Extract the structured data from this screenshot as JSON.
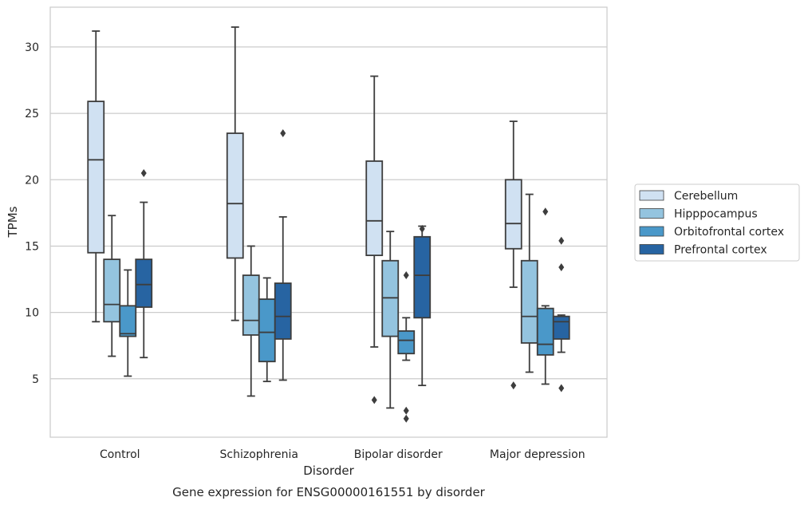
{
  "chart_data": {
    "type": "box",
    "title": "Gene expression for ENSG00000161551 by disorder",
    "xlabel": "Disorder",
    "ylabel": "TPMs",
    "ylim": [
      0.6,
      33.0
    ],
    "yticks": [
      5,
      10,
      15,
      20,
      25,
      30
    ],
    "grid": "horizontal",
    "legend_position": "right",
    "categories": [
      "Control",
      "Schizophrenia",
      "Bipolar disorder",
      "Major depression"
    ],
    "series": [
      {
        "name": "Cerebellum",
        "color": "#d0e1f2",
        "boxes": [
          {
            "whislo": 9.3,
            "q1": 14.5,
            "med": 21.5,
            "q3": 25.9,
            "whishi": 31.2,
            "fliers": []
          },
          {
            "whislo": 9.4,
            "q1": 14.1,
            "med": 18.2,
            "q3": 23.5,
            "whishi": 31.5,
            "fliers": []
          },
          {
            "whislo": 7.4,
            "q1": 14.3,
            "med": 16.9,
            "q3": 21.4,
            "whishi": 27.8,
            "fliers": [
              3.4
            ]
          },
          {
            "whislo": 11.9,
            "q1": 14.8,
            "med": 16.7,
            "q3": 20.0,
            "whishi": 24.4,
            "fliers": [
              4.5
            ]
          }
        ]
      },
      {
        "name": "Hipppocampus",
        "color": "#94c4df",
        "boxes": [
          {
            "whislo": 6.7,
            "q1": 9.3,
            "med": 10.6,
            "q3": 14.0,
            "whishi": 17.3,
            "fliers": []
          },
          {
            "whislo": 3.7,
            "q1": 8.3,
            "med": 9.4,
            "q3": 12.8,
            "whishi": 15.0,
            "fliers": []
          },
          {
            "whislo": 2.8,
            "q1": 8.2,
            "med": 11.1,
            "q3": 13.9,
            "whishi": 16.1,
            "fliers": []
          },
          {
            "whislo": 5.5,
            "q1": 7.7,
            "med": 9.7,
            "q3": 13.9,
            "whishi": 18.9,
            "fliers": []
          }
        ]
      },
      {
        "name": "Orbitofrontal cortex",
        "color": "#4a98c9",
        "boxes": [
          {
            "whislo": 5.2,
            "q1": 8.2,
            "med": 8.4,
            "q3": 10.5,
            "whishi": 13.2,
            "fliers": []
          },
          {
            "whislo": 4.8,
            "q1": 6.3,
            "med": 8.5,
            "q3": 11.0,
            "whishi": 12.6,
            "fliers": []
          },
          {
            "whislo": 6.4,
            "q1": 6.9,
            "med": 7.9,
            "q3": 8.6,
            "whishi": 9.6,
            "fliers": [
              12.8,
              2.6,
              2.0
            ]
          },
          {
            "whislo": 4.6,
            "q1": 6.8,
            "med": 7.6,
            "q3": 10.3,
            "whishi": 10.5,
            "fliers": [
              17.6
            ]
          }
        ]
      },
      {
        "name": "Prefrontal cortex",
        "color": "#2764a2",
        "boxes": [
          {
            "whislo": 6.6,
            "q1": 10.4,
            "med": 12.1,
            "q3": 14.0,
            "whishi": 18.3,
            "fliers": [
              20.5
            ]
          },
          {
            "whislo": 4.9,
            "q1": 8.0,
            "med": 9.7,
            "q3": 12.2,
            "whishi": 17.2,
            "fliers": [
              23.5
            ]
          },
          {
            "whislo": 4.5,
            "q1": 9.6,
            "med": 12.8,
            "q3": 15.7,
            "whishi": 16.5,
            "fliers": [
              16.3
            ]
          },
          {
            "whislo": 7.0,
            "q1": 8.0,
            "med": 9.3,
            "q3": 9.7,
            "whishi": 9.8,
            "fliers": [
              15.4,
              13.4,
              4.3
            ]
          }
        ]
      }
    ]
  }
}
